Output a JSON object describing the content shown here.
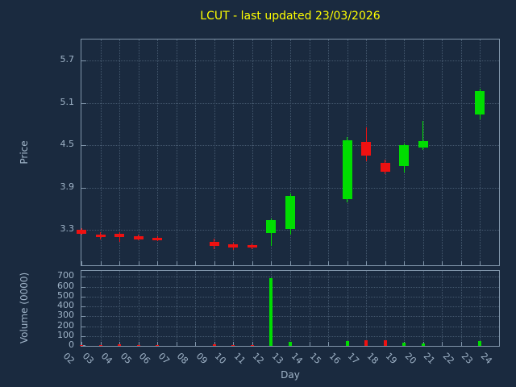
{
  "chart_data": {
    "type": "candlestick",
    "title": "LCUT - last updated 23/03/2026",
    "xlabel": "Day",
    "colors": {
      "background": "#1a2a3f",
      "title": "#ffff00",
      "axis_text": "#a0b4c8",
      "grid": "#44586e",
      "border": "#8095aa",
      "up": "#00dd00",
      "down": "#ee1111"
    },
    "price_axis": {
      "label": "Price",
      "ticks": [
        3.3,
        3.9,
        4.5,
        5.1,
        5.7
      ],
      "min": 2.8,
      "max": 6.0
    },
    "volume_axis": {
      "label": "Volume (0000)",
      "ticks": [
        0,
        100,
        200,
        300,
        400,
        500,
        600,
        700
      ],
      "max": 760
    },
    "x_axis": {
      "min": 2,
      "max": 24,
      "tick_labels": [
        "02",
        "03",
        "04",
        "05",
        "06",
        "07",
        "08",
        "09",
        "10",
        "11",
        "12",
        "13",
        "14",
        "15",
        "16",
        "17",
        "18",
        "19",
        "20",
        "21",
        "22",
        "23",
        "24"
      ]
    },
    "candles": [
      {
        "day": 2,
        "open": 3.3,
        "high": 3.33,
        "low": 3.23,
        "close": 3.25,
        "volume": 12
      },
      {
        "day": 3,
        "open": 3.24,
        "high": 3.27,
        "low": 3.17,
        "close": 3.2,
        "volume": 10
      },
      {
        "day": 4,
        "open": 3.25,
        "high": 3.27,
        "low": 3.13,
        "close": 3.2,
        "volume": 14
      },
      {
        "day": 5,
        "open": 3.21,
        "high": 3.23,
        "low": 3.15,
        "close": 3.17,
        "volume": 8
      },
      {
        "day": 6,
        "open": 3.19,
        "high": 3.21,
        "low": 3.14,
        "close": 3.16,
        "volume": 8
      },
      {
        "day": 9,
        "open": 3.13,
        "high": 3.18,
        "low": 3.03,
        "close": 3.08,
        "volume": 15
      },
      {
        "day": 10,
        "open": 3.1,
        "high": 3.12,
        "low": 3.02,
        "close": 3.05,
        "volume": 12
      },
      {
        "day": 11,
        "open": 3.09,
        "high": 3.11,
        "low": 3.03,
        "close": 3.05,
        "volume": 10
      },
      {
        "day": 12,
        "open": 3.26,
        "high": 3.46,
        "low": 3.08,
        "close": 3.44,
        "volume": 690
      },
      {
        "day": 13,
        "open": 3.32,
        "high": 3.82,
        "low": 3.24,
        "close": 3.78,
        "volume": 40
      },
      {
        "day": 16,
        "open": 3.74,
        "high": 4.62,
        "low": 3.69,
        "close": 4.57,
        "volume": 45
      },
      {
        "day": 17,
        "open": 4.55,
        "high": 4.75,
        "low": 4.27,
        "close": 4.35,
        "volume": 60
      },
      {
        "day": 18,
        "open": 4.25,
        "high": 4.3,
        "low": 4.09,
        "close": 4.13,
        "volume": 55
      },
      {
        "day": 19,
        "open": 4.21,
        "high": 4.53,
        "low": 4.12,
        "close": 4.5,
        "volume": 30
      },
      {
        "day": 20,
        "open": 4.47,
        "high": 4.85,
        "low": 4.43,
        "close": 4.56,
        "volume": 25
      },
      {
        "day": 23,
        "open": 4.94,
        "high": 5.3,
        "low": 4.87,
        "close": 5.27,
        "volume": 50
      }
    ]
  }
}
